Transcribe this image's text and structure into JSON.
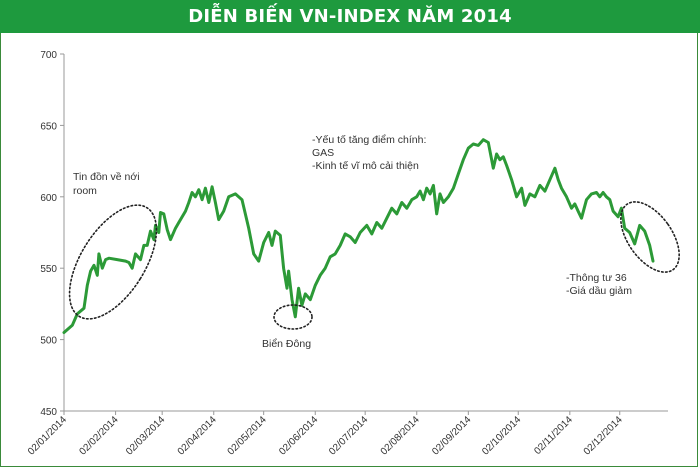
{
  "header": {
    "title": "DIỄN BIẾN VN-INDEX NĂM 2014"
  },
  "colors": {
    "title_bg": "#1e9a3e",
    "line": "#2c9a37",
    "axis": "#999999",
    "ellipse": "#222222"
  },
  "chart_data": {
    "type": "line",
    "title": "DIỄN BIẾN VN-INDEX NĂM 2014",
    "xlabel": "",
    "ylabel": "",
    "ylim": [
      450,
      700
    ],
    "yticks": [
      450,
      500,
      550,
      600,
      650,
      700
    ],
    "xlim": [
      "2014-01-02",
      "2014-12-31"
    ],
    "x_tick_labels": [
      "02/01/2014",
      "02/02/2014",
      "02/03/2014",
      "02/04/2014",
      "02/05/2014",
      "02/06/2014",
      "02/07/2014",
      "02/08/2014",
      "02/09/2014",
      "02/10/2014",
      "02/11/2014",
      "02/12/2014"
    ],
    "x_tick_dates": [
      "2014-01-02",
      "2014-02-02",
      "2014-03-02",
      "2014-04-02",
      "2014-05-02",
      "2014-06-02",
      "2014-07-02",
      "2014-08-02",
      "2014-09-02",
      "2014-10-02",
      "2014-11-02",
      "2014-12-02"
    ],
    "grid": false,
    "legend": "none",
    "series": [
      {
        "points": [
          [
            "2014-01-02",
            505
          ],
          [
            "2014-01-07",
            510
          ],
          [
            "2014-01-10",
            518
          ],
          [
            "2014-01-14",
            522
          ],
          [
            "2014-01-16",
            538
          ],
          [
            "2014-01-18",
            548
          ],
          [
            "2014-01-20",
            552
          ],
          [
            "2014-01-22",
            545
          ],
          [
            "2014-01-23",
            560
          ],
          [
            "2014-01-25",
            550
          ],
          [
            "2014-01-27",
            556
          ],
          [
            "2014-01-29",
            557
          ],
          [
            "2014-02-03",
            556
          ],
          [
            "2014-02-08",
            555
          ],
          [
            "2014-02-10",
            554
          ],
          [
            "2014-02-12",
            550
          ],
          [
            "2014-02-14",
            560
          ],
          [
            "2014-02-17",
            556
          ],
          [
            "2014-02-19",
            566
          ],
          [
            "2014-02-21",
            566
          ],
          [
            "2014-02-23",
            576
          ],
          [
            "2014-02-25",
            570
          ],
          [
            "2014-02-26",
            580
          ],
          [
            "2014-02-28",
            575
          ],
          [
            "2014-03-01",
            589
          ],
          [
            "2014-03-03",
            588
          ],
          [
            "2014-03-05",
            577
          ],
          [
            "2014-03-07",
            570
          ],
          [
            "2014-03-10",
            578
          ],
          [
            "2014-03-12",
            582
          ],
          [
            "2014-03-16",
            590
          ],
          [
            "2014-03-18",
            596
          ],
          [
            "2014-03-20",
            603
          ],
          [
            "2014-03-22",
            600
          ],
          [
            "2014-03-24",
            605
          ],
          [
            "2014-03-26",
            598
          ],
          [
            "2014-03-28",
            606
          ],
          [
            "2014-03-30",
            596
          ],
          [
            "2014-04-01",
            607
          ],
          [
            "2014-04-03",
            596
          ],
          [
            "2014-04-05",
            584
          ],
          [
            "2014-04-08",
            590
          ],
          [
            "2014-04-11",
            600
          ],
          [
            "2014-04-15",
            602
          ],
          [
            "2014-04-19",
            598
          ],
          [
            "2014-04-23",
            578
          ],
          [
            "2014-04-26",
            560
          ],
          [
            "2014-04-29",
            555
          ],
          [
            "2014-05-02",
            568
          ],
          [
            "2014-05-05",
            575
          ],
          [
            "2014-05-07",
            566
          ],
          [
            "2014-05-09",
            576
          ],
          [
            "2014-05-12",
            573
          ],
          [
            "2014-05-14",
            550
          ],
          [
            "2014-05-16",
            536
          ],
          [
            "2014-05-17",
            548
          ],
          [
            "2014-05-19",
            528
          ],
          [
            "2014-05-21",
            516
          ],
          [
            "2014-05-23",
            536
          ],
          [
            "2014-05-25",
            524
          ],
          [
            "2014-05-27",
            532
          ],
          [
            "2014-05-30",
            528
          ],
          [
            "2014-06-02",
            538
          ],
          [
            "2014-06-05",
            545
          ],
          [
            "2014-06-08",
            550
          ],
          [
            "2014-06-11",
            558
          ],
          [
            "2014-06-14",
            560
          ],
          [
            "2014-06-17",
            566
          ],
          [
            "2014-06-20",
            574
          ],
          [
            "2014-06-23",
            572
          ],
          [
            "2014-06-26",
            568
          ],
          [
            "2014-06-29",
            575
          ],
          [
            "2014-07-03",
            580
          ],
          [
            "2014-07-06",
            574
          ],
          [
            "2014-07-09",
            582
          ],
          [
            "2014-07-12",
            578
          ],
          [
            "2014-07-15",
            585
          ],
          [
            "2014-07-18",
            592
          ],
          [
            "2014-07-21",
            588
          ],
          [
            "2014-07-24",
            596
          ],
          [
            "2014-07-27",
            592
          ],
          [
            "2014-07-30",
            598
          ],
          [
            "2014-08-02",
            600
          ],
          [
            "2014-08-04",
            604
          ],
          [
            "2014-08-06",
            598
          ],
          [
            "2014-08-08",
            606
          ],
          [
            "2014-08-10",
            602
          ],
          [
            "2014-08-12",
            608
          ],
          [
            "2014-08-14",
            588
          ],
          [
            "2014-08-16",
            602
          ],
          [
            "2014-08-18",
            596
          ],
          [
            "2014-08-21",
            600
          ],
          [
            "2014-08-24",
            606
          ],
          [
            "2014-08-27",
            616
          ],
          [
            "2014-08-30",
            626
          ],
          [
            "2014-09-02",
            634
          ],
          [
            "2014-09-05",
            637
          ],
          [
            "2014-09-08",
            636
          ],
          [
            "2014-09-11",
            640
          ],
          [
            "2014-09-14",
            638
          ],
          [
            "2014-09-17",
            620
          ],
          [
            "2014-09-19",
            630
          ],
          [
            "2014-09-21",
            626
          ],
          [
            "2014-09-23",
            628
          ],
          [
            "2014-09-25",
            622
          ],
          [
            "2014-09-28",
            612
          ],
          [
            "2014-10-01",
            600
          ],
          [
            "2014-10-04",
            606
          ],
          [
            "2014-10-06",
            594
          ],
          [
            "2014-10-09",
            602
          ],
          [
            "2014-10-12",
            600
          ],
          [
            "2014-10-15",
            608
          ],
          [
            "2014-10-18",
            604
          ],
          [
            "2014-10-21",
            612
          ],
          [
            "2014-10-24",
            620
          ],
          [
            "2014-10-26",
            612
          ],
          [
            "2014-10-28",
            606
          ],
          [
            "2014-10-31",
            600
          ],
          [
            "2014-11-03",
            592
          ],
          [
            "2014-11-05",
            595
          ],
          [
            "2014-11-07",
            590
          ],
          [
            "2014-11-09",
            585
          ],
          [
            "2014-11-12",
            598
          ],
          [
            "2014-11-15",
            602
          ],
          [
            "2014-11-18",
            603
          ],
          [
            "2014-11-20",
            600
          ],
          [
            "2014-11-22",
            603
          ],
          [
            "2014-11-24",
            600
          ],
          [
            "2014-11-26",
            598
          ],
          [
            "2014-11-28",
            590
          ],
          [
            "2014-12-01",
            586
          ],
          [
            "2014-12-03",
            592
          ],
          [
            "2014-12-05",
            578
          ],
          [
            "2014-12-08",
            575
          ],
          [
            "2014-12-11",
            567
          ],
          [
            "2014-12-14",
            580
          ],
          [
            "2014-12-17",
            576
          ],
          [
            "2014-12-20",
            566
          ],
          [
            "2014-12-22",
            555
          ]
        ]
      }
    ],
    "annotations": [
      {
        "id": "rumor",
        "lines": [
          "Tin đồn về nới",
          "room"
        ]
      },
      {
        "id": "bien-dong",
        "lines": [
          "Biển Đông"
        ]
      },
      {
        "id": "factors",
        "lines": [
          "-Yếu tố tăng điểm chính:",
          "GAS",
          "-Kinh tế vĩ mô cải thiện"
        ]
      },
      {
        "id": "circular",
        "lines": [
          "-Thông  tư 36",
          "-Giá dầu giảm"
        ]
      }
    ]
  }
}
